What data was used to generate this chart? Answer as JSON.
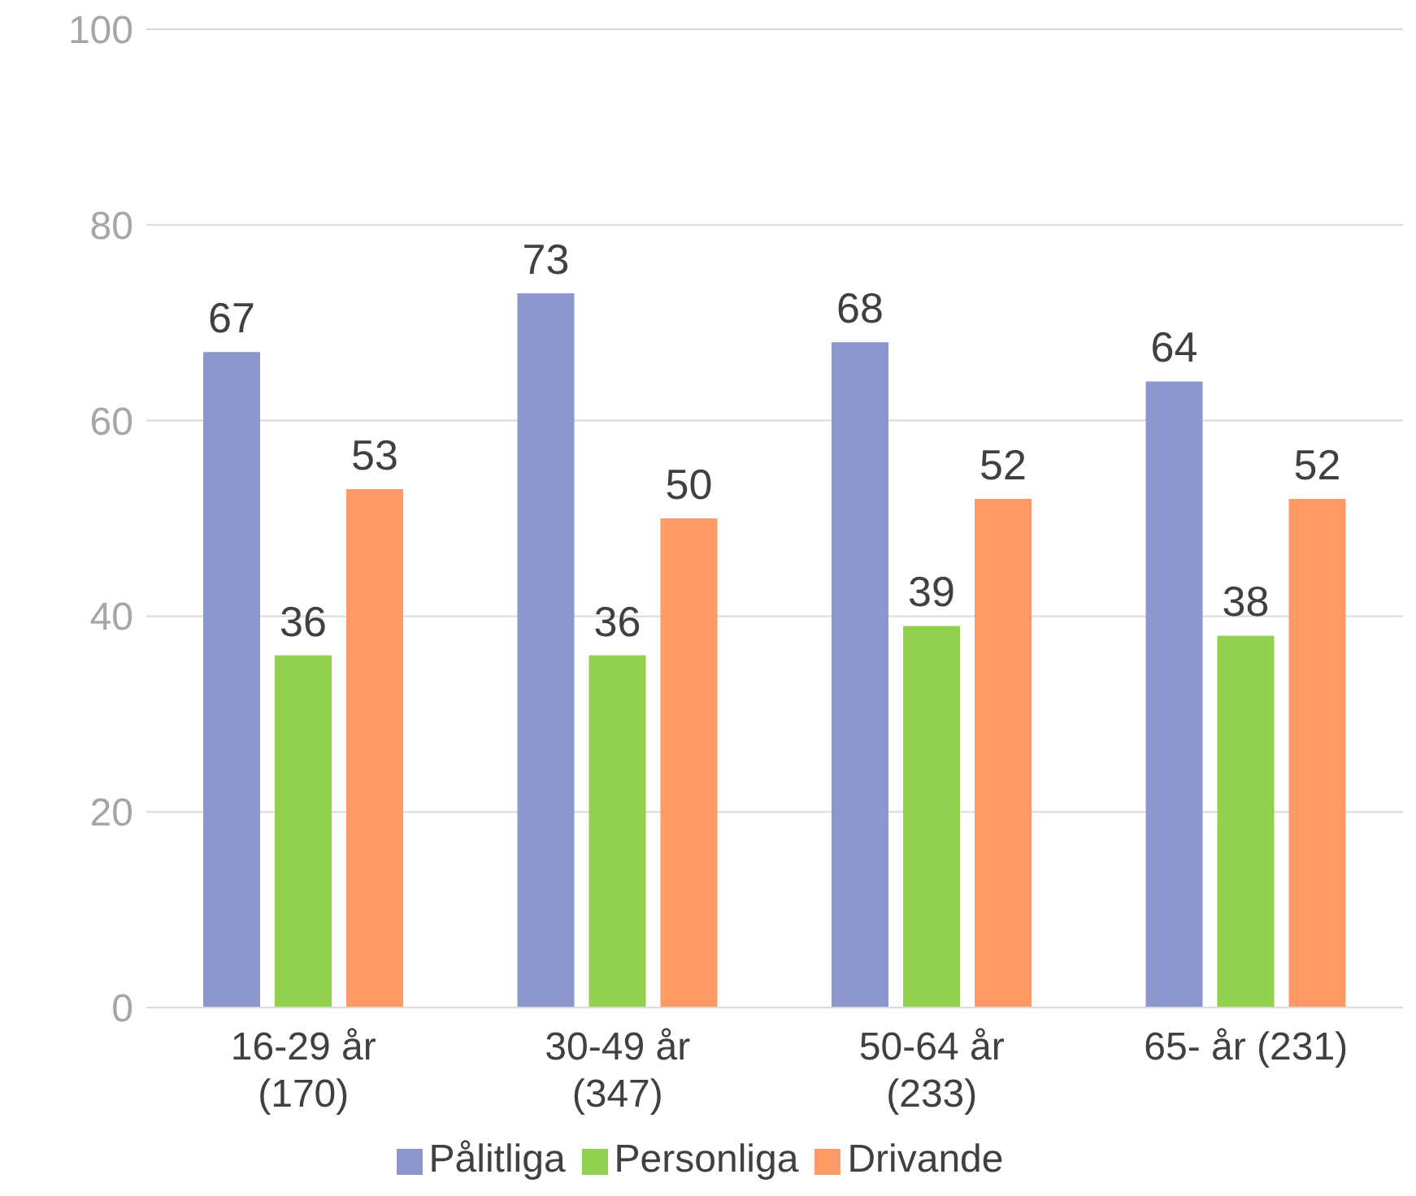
{
  "chart_data": {
    "type": "bar",
    "categories": [
      "16-29 år (170)",
      "30-49 år (347)",
      "50-64 år (233)",
      "65- år (231)"
    ],
    "series": [
      {
        "name": "Pålitliga",
        "color": "#8e97cd",
        "values": [
          67,
          73,
          68,
          64
        ]
      },
      {
        "name": "Personliga",
        "color": "#92d050",
        "values": [
          36,
          36,
          39,
          38
        ]
      },
      {
        "name": "Drivande",
        "color": "#ff9966",
        "values": [
          53,
          50,
          52,
          52
        ]
      }
    ],
    "ylim": [
      0,
      100
    ],
    "yticks": [
      0,
      20,
      40,
      60,
      80,
      100
    ],
    "grid": "y",
    "legend": "bottom",
    "data_labels": true
  }
}
